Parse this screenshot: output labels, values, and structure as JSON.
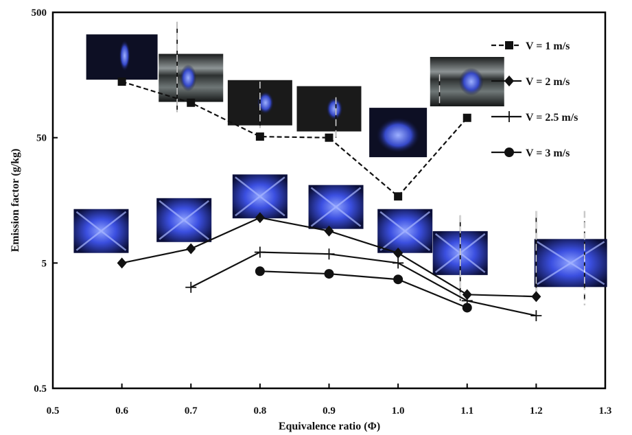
{
  "chart_data": {
    "type": "line",
    "xlabel": "Equivalence ratio (Φ)",
    "ylabel": "Emission factor (g/kg)",
    "x_scale": "linear",
    "y_scale": "log",
    "xlim": [
      0.5,
      1.3
    ],
    "ylim": [
      0.5,
      500
    ],
    "x_ticks": [
      "0.5",
      "0.6",
      "0.7",
      "0.8",
      "0.9",
      "1.0",
      "1.1",
      "1.2",
      "1.3"
    ],
    "y_ticks": [
      "0.5",
      "5",
      "50",
      "500"
    ],
    "legend_position": "top-right",
    "series": [
      {
        "name": "V = 1 m/s",
        "marker": "square",
        "line": "dashed",
        "x": [
          0.6,
          0.7,
          0.8,
          0.9,
          1.0,
          1.1
        ],
        "y": [
          140,
          95,
          51,
          50,
          17,
          72
        ]
      },
      {
        "name": "V = 2 m/s",
        "marker": "diamond",
        "line": "solid",
        "x": [
          0.6,
          0.7,
          0.8,
          0.9,
          1.0,
          1.1,
          1.2
        ],
        "y": [
          5.0,
          6.5,
          11.5,
          9.0,
          6.0,
          2.8,
          2.7
        ]
      },
      {
        "name": "V = 2.5 m/s",
        "marker": "plus",
        "line": "solid",
        "x": [
          0.7,
          0.8,
          0.9,
          1.0,
          1.1,
          1.2
        ],
        "y": [
          3.2,
          6.1,
          5.9,
          5.0,
          2.5,
          1.9
        ]
      },
      {
        "name": "V = 3 m/s",
        "marker": "circle",
        "line": "solid",
        "x": [
          0.8,
          0.9,
          1.0,
          1.1
        ],
        "y": [
          4.3,
          4.1,
          3.7,
          2.2
        ]
      }
    ],
    "flame_photos": [
      {
        "x": 0.6,
        "y": 220,
        "style": "dark-ellipse"
      },
      {
        "x": 0.7,
        "y": 150,
        "style": "tube"
      },
      {
        "x": 0.8,
        "y": 95,
        "style": "dark-blob"
      },
      {
        "x": 0.9,
        "y": 85,
        "style": "dark-blob"
      },
      {
        "x": 1.0,
        "y": 55,
        "style": "blue-glow"
      },
      {
        "x": 1.1,
        "y": 140,
        "style": "tube-bright"
      },
      {
        "x": 0.57,
        "y": 9,
        "style": "blue-x"
      },
      {
        "x": 0.69,
        "y": 11,
        "style": "blue-x"
      },
      {
        "x": 0.8,
        "y": 17,
        "style": "blue-x"
      },
      {
        "x": 0.91,
        "y": 14,
        "style": "blue-x"
      },
      {
        "x": 1.01,
        "y": 9,
        "style": "blue-x"
      },
      {
        "x": 1.09,
        "y": 6,
        "style": "blue-x"
      },
      {
        "x": 1.25,
        "y": 5,
        "style": "blue-x-wide"
      }
    ],
    "colors": {
      "line": "#111111",
      "frame": "#000000",
      "flame": "#3b55e6",
      "photo_bg": "#0d0f24"
    }
  }
}
